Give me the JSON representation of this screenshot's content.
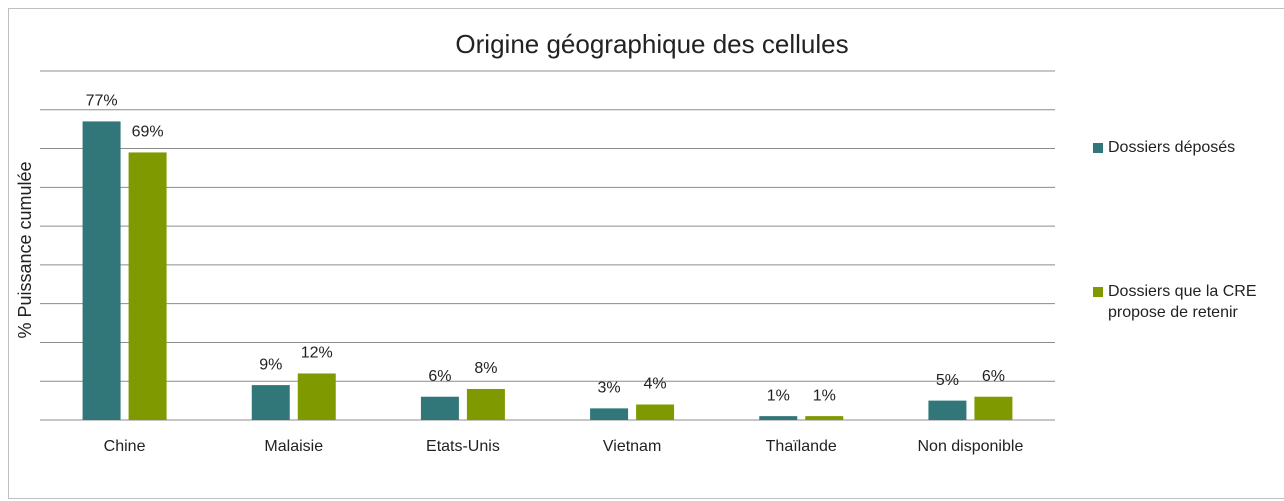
{
  "chart_data": {
    "type": "bar",
    "title": "Origine géographique des cellules",
    "y_label": "% Puissance cumulée",
    "categories": [
      "Chine",
      "Malaisie",
      "Etats-Unis",
      "Vietnam",
      "Thaïlande",
      "Non disponible"
    ],
    "series": [
      {
        "name": "Dossiers déposés",
        "color": "#31777a",
        "values": [
          77,
          9,
          6,
          3,
          1,
          5
        ],
        "value_labels": [
          "77%",
          "9%",
          "6%",
          "3%",
          "1%",
          "5%"
        ]
      },
      {
        "name": "Dossiers que la CRE propose de retenir",
        "color": "#7f9a00",
        "values": [
          69,
          12,
          8,
          4,
          1,
          6
        ],
        "value_labels": [
          "69%",
          "12%",
          "8%",
          "4%",
          "1%",
          "6%"
        ]
      }
    ],
    "ylim": [
      0,
      90
    ],
    "yticks": [
      0,
      10,
      20,
      30,
      40,
      50,
      60,
      70,
      80,
      90
    ],
    "grid": true
  }
}
